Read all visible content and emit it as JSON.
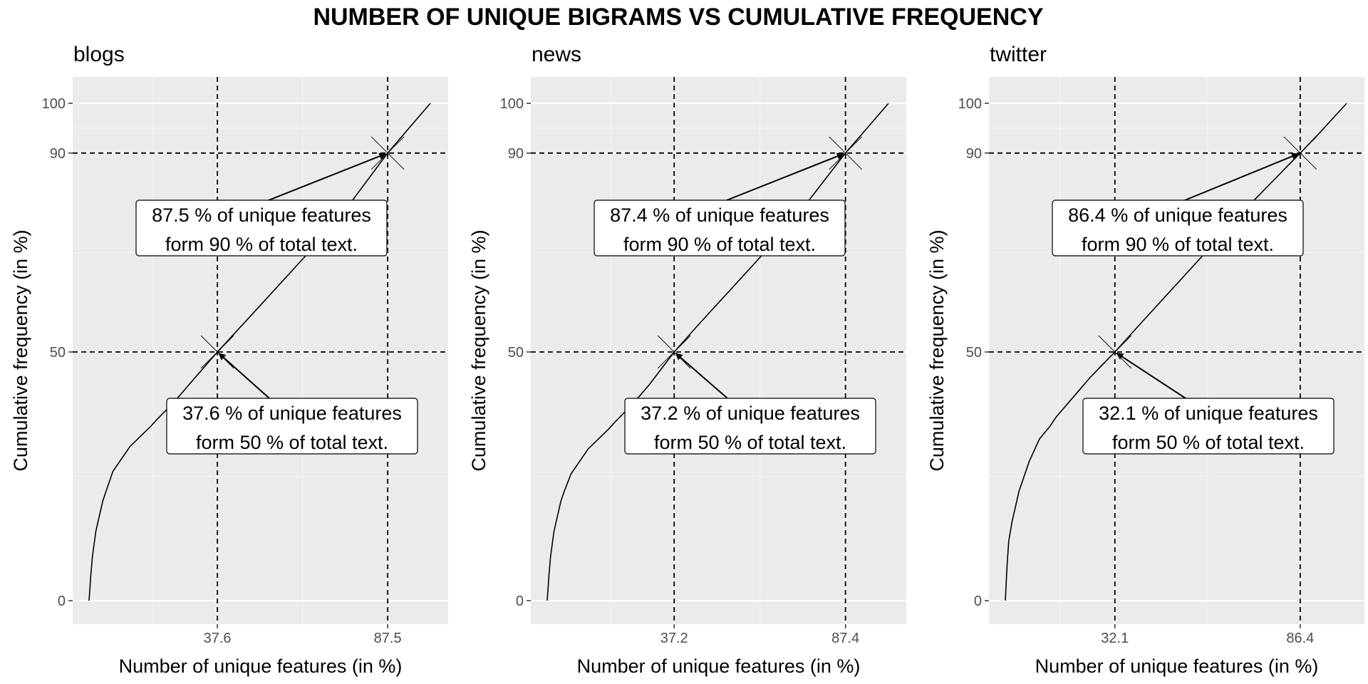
{
  "title": "NUMBER OF UNIQUE BIGRAMS VS CUMULATIVE FREQUENCY",
  "chart_data": [
    {
      "type": "line",
      "panel_title": "blogs",
      "xlabel": "Number of unique features (in %)",
      "ylabel": "Cumulative frequency (in %)",
      "xticks": [
        37.6,
        87.5
      ],
      "yticks": [
        0,
        50,
        90,
        100
      ],
      "xlim": [
        0,
        100
      ],
      "ylim": [
        0,
        100
      ],
      "grid": true,
      "x": [
        0,
        0.5,
        1,
        2,
        3,
        4,
        5,
        7,
        10,
        12,
        15,
        18,
        20,
        25,
        30,
        37.6,
        45,
        55,
        65,
        75,
        87.5,
        95,
        100
      ],
      "y": [
        0,
        5,
        9,
        14,
        17,
        20,
        22,
        26,
        29,
        31,
        33,
        35,
        36.5,
        40,
        44,
        50,
        55.5,
        63,
        70.5,
        78.5,
        90,
        96,
        100
      ],
      "markers": [
        {
          "x": 37.6,
          "y": 50,
          "label_line1": "37.6 % of unique features",
          "label_line2": "form 50 % of total text."
        },
        {
          "x": 87.5,
          "y": 90,
          "label_line1": "87.5 % of unique features",
          "label_line2": "form 90 % of total text."
        }
      ]
    },
    {
      "type": "line",
      "panel_title": "news",
      "xlabel": "Number of unique features (in %)",
      "ylabel": "Cumulative frequency (in %)",
      "xticks": [
        37.2,
        87.4
      ],
      "yticks": [
        0,
        50,
        90,
        100
      ],
      "xlim": [
        0,
        100
      ],
      "ylim": [
        0,
        100
      ],
      "grid": true,
      "x": [
        0,
        0.5,
        1,
        2,
        3,
        4,
        5,
        7,
        10,
        12,
        15,
        18,
        20,
        25,
        30,
        37.2,
        45,
        55,
        65,
        75,
        87.4,
        95,
        100
      ],
      "y": [
        0,
        5,
        9,
        14,
        17,
        20,
        22,
        25.5,
        28.5,
        30.5,
        32.5,
        34.5,
        36,
        39.5,
        43.5,
        50,
        56,
        63.5,
        71,
        79,
        90,
        96,
        100
      ],
      "markers": [
        {
          "x": 37.2,
          "y": 50,
          "label_line1": "37.2 % of unique features",
          "label_line2": "form 50 % of total text."
        },
        {
          "x": 87.4,
          "y": 90,
          "label_line1": "87.4 % of unique features",
          "label_line2": "form 90 % of total text."
        }
      ]
    },
    {
      "type": "line",
      "panel_title": "twitter",
      "xlabel": "Number of unique features (in %)",
      "ylabel": "Cumulative frequency (in %)",
      "xticks": [
        32.1,
        86.4
      ],
      "yticks": [
        0,
        50,
        90,
        100
      ],
      "xlim": [
        0,
        100
      ],
      "ylim": [
        0,
        100
      ],
      "grid": true,
      "x": [
        0,
        0.5,
        1,
        2,
        3,
        4,
        5,
        7,
        10,
        13,
        15,
        20,
        25,
        32.1,
        40,
        50,
        60,
        70,
        80,
        86.4,
        92,
        100
      ],
      "y": [
        0,
        7,
        12,
        16,
        19,
        22,
        24,
        28,
        32.5,
        35,
        37,
        41,
        45,
        50,
        56,
        63.5,
        71,
        78.5,
        85.5,
        90,
        94,
        100
      ],
      "markers": [
        {
          "x": 32.1,
          "y": 50,
          "label_line1": "32.1 % of unique features",
          "label_line2": "form 50 % of total text."
        },
        {
          "x": 86.4,
          "y": 90,
          "label_line1": "86.4 % of unique features",
          "label_line2": "form 90 % of total text."
        }
      ]
    }
  ]
}
